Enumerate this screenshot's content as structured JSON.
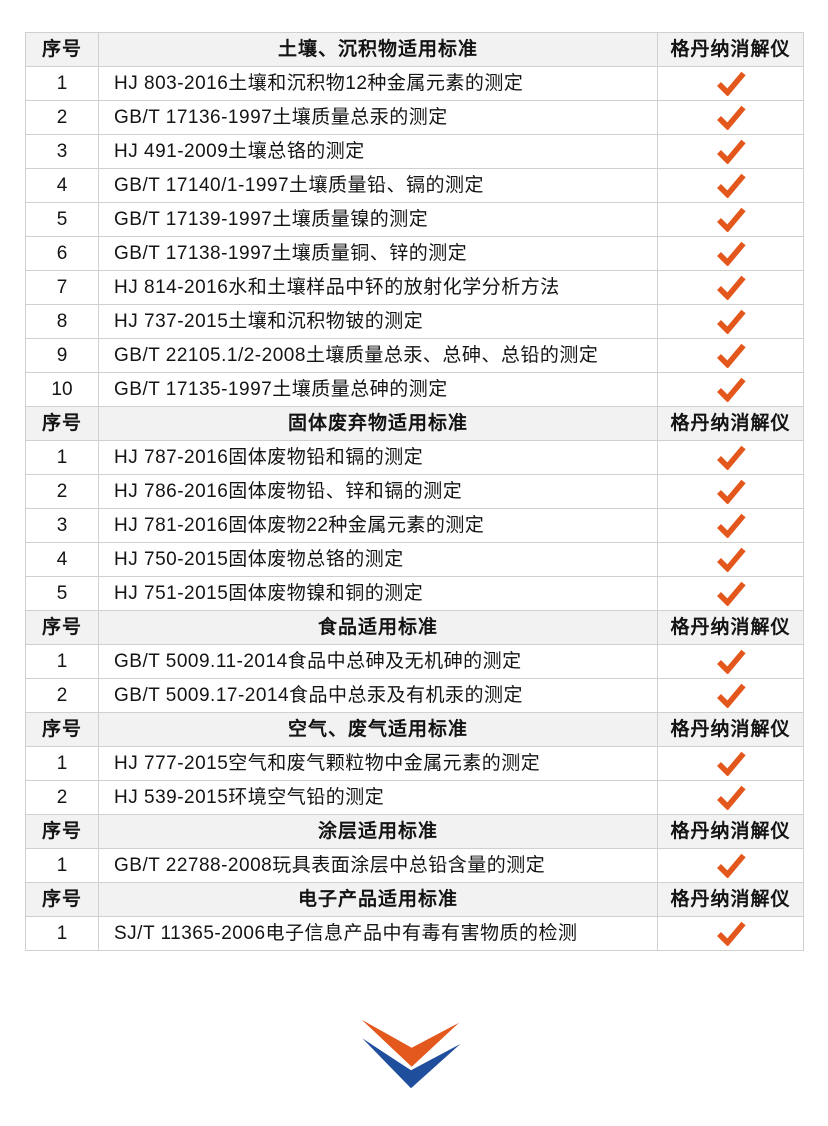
{
  "colors": {
    "checkmark": "#E4571C",
    "logo_orange": "#E3581C",
    "logo_blue": "#1F4E9C",
    "header_bg": "#F2F2F2",
    "border": "#D0D0D0",
    "text": "#141414"
  },
  "icons": {
    "checkmark": "✔",
    "logo": "double-chevron-down"
  },
  "table": {
    "sections": [
      {
        "header": {
          "index_label": "序号",
          "title": "土壤、沉积物适用标准",
          "instrument_label": "格丹纳消解仪"
        },
        "rows": [
          {
            "no": "1",
            "standard": "HJ 803-2016土壤和沉积物12种金属元素的测定",
            "checked": true
          },
          {
            "no": "2",
            "standard": "GB/T 17136-1997土壤质量总汞的测定",
            "checked": true
          },
          {
            "no": "3",
            "standard": "HJ 491-2009土壤总铬的测定",
            "checked": true
          },
          {
            "no": "4",
            "standard": "GB/T 17140/1-1997土壤质量铅、镉的测定",
            "checked": true
          },
          {
            "no": "5",
            "standard": "GB/T 17139-1997土壤质量镍的测定",
            "checked": true
          },
          {
            "no": "6",
            "standard": "GB/T 17138-1997土壤质量铜、锌的测定",
            "checked": true
          },
          {
            "no": "7",
            "standard": "HJ 814-2016水和土壤样品中钚的放射化学分析方法",
            "checked": true
          },
          {
            "no": "8",
            "standard": "HJ 737-2015土壤和沉积物铍的测定",
            "checked": true
          },
          {
            "no": "9",
            "standard": "GB/T 22105.1/2-2008土壤质量总汞、总砷、总铅的测定",
            "checked": true
          },
          {
            "no": "10",
            "standard": "GB/T 17135-1997土壤质量总砷的测定",
            "checked": true
          }
        ]
      },
      {
        "header": {
          "index_label": "序号",
          "title": "固体废弃物适用标准",
          "instrument_label": "格丹纳消解仪"
        },
        "rows": [
          {
            "no": "1",
            "standard": "HJ 787-2016固体废物铅和镉的测定",
            "checked": true
          },
          {
            "no": "2",
            "standard": "HJ 786-2016固体废物铅、锌和镉的测定",
            "checked": true
          },
          {
            "no": "3",
            "standard": "HJ 781-2016固体废物22种金属元素的测定",
            "checked": true
          },
          {
            "no": "4",
            "standard": "HJ 750-2015固体废物总铬的测定",
            "checked": true
          },
          {
            "no": "5",
            "standard": "HJ 751-2015固体废物镍和铜的测定",
            "checked": true
          }
        ]
      },
      {
        "header": {
          "index_label": "序号",
          "title": "食品适用标准",
          "instrument_label": "格丹纳消解仪"
        },
        "rows": [
          {
            "no": "1",
            "standard": "GB/T 5009.11-2014食品中总砷及无机砷的测定",
            "checked": true
          },
          {
            "no": "2",
            "standard": "GB/T 5009.17-2014食品中总汞及有机汞的测定",
            "checked": true
          }
        ]
      },
      {
        "header": {
          "index_label": "序号",
          "title": "空气、废气适用标准",
          "instrument_label": "格丹纳消解仪"
        },
        "rows": [
          {
            "no": "1",
            "standard": "HJ 777-2015空气和废气颗粒物中金属元素的测定",
            "checked": true
          },
          {
            "no": "2",
            "standard": "HJ 539-2015环境空气铅的测定",
            "checked": true
          }
        ]
      },
      {
        "header": {
          "index_label": "序号",
          "title": "涂层适用标准",
          "instrument_label": "格丹纳消解仪"
        },
        "rows": [
          {
            "no": "1",
            "standard": "GB/T 22788-2008玩具表面涂层中总铅含量的测定",
            "checked": true
          }
        ]
      },
      {
        "header": {
          "index_label": "序号",
          "title": "电子产品适用标准",
          "instrument_label": "格丹纳消解仪"
        },
        "rows": [
          {
            "no": "1",
            "standard": "SJ/T 11365-2006电子信息产品中有毒有害物质的检测",
            "checked": true
          }
        ]
      }
    ]
  }
}
